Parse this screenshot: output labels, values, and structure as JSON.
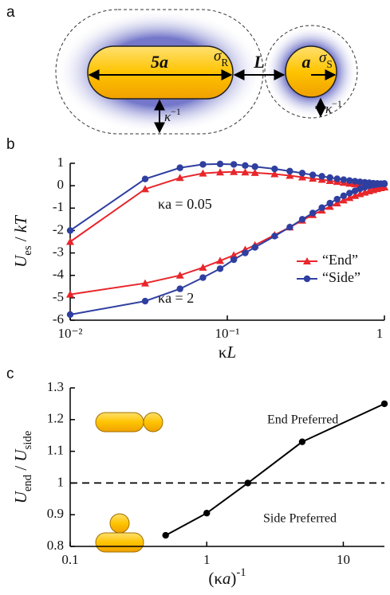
{
  "panel_labels": [
    "a",
    "b",
    "c"
  ],
  "diagram": {
    "rod_length": [
      {
        "t": "5a",
        "s": "bi"
      }
    ],
    "rod_charge": [
      {
        "t": "σ",
        "s": "it"
      },
      {
        "t": "R",
        "s": "sub"
      }
    ],
    "gap": [
      {
        "t": "L",
        "s": "bi"
      }
    ],
    "radius": [
      {
        "t": "a",
        "s": "bi"
      }
    ],
    "sphere_charge": [
      {
        "t": "σ",
        "s": "it"
      },
      {
        "t": "S",
        "s": "sub"
      }
    ],
    "debye_rod": [
      {
        "t": "κ",
        "s": "it"
      },
      {
        "t": "−1",
        "s": "sup"
      }
    ],
    "debye_sphere": [
      {
        "t": "κ",
        "s": "it"
      },
      {
        "t": "−1",
        "s": "sup"
      }
    ]
  },
  "chart_data": [
    {
      "type": "line",
      "log_x": true,
      "x": [
        0.01,
        0.03,
        0.05,
        0.07,
        0.09,
        0.11,
        0.13,
        0.15,
        0.2,
        0.25,
        0.3,
        0.35,
        0.4,
        0.45,
        0.5,
        0.55,
        0.6,
        0.65,
        0.7,
        0.75,
        0.8,
        0.85,
        0.9,
        0.95,
        1
      ],
      "xlim": [
        0.01,
        1
      ],
      "ylim": [
        -6,
        1
      ],
      "xticks": [
        {
          "value": 0.01,
          "label": "10⁻²"
        },
        {
          "value": 0.1,
          "label": "10⁻¹"
        },
        1
      ],
      "yticks": [
        -6,
        -5,
        -4,
        -3,
        -2,
        -1,
        0,
        1
      ],
      "xlabel": [
        {
          "t": "κ",
          "s": ""
        },
        {
          "t": "L",
          "s": "it"
        }
      ],
      "ylabel": [
        {
          "t": "U",
          "s": "it"
        },
        {
          "t": "es",
          "s": "sub"
        },
        {
          "t": " / ",
          "s": ""
        },
        {
          "t": "kT",
          "s": "it"
        }
      ],
      "annotations": [
        "κa = 0.05",
        "κa = 2"
      ],
      "legend": "center right",
      "series": [
        {
          "name": "“End”",
          "color": "#e8262b",
          "marker": "triangle",
          "curves": [
            [
              -2.5,
              -0.15,
              0.35,
              0.55,
              0.6,
              0.62,
              0.6,
              0.58,
              0.52,
              0.45,
              0.38,
              0.32,
              0.27,
              0.22,
              0.18,
              0.14,
              0.1,
              0.07,
              0.04,
              0.02,
              0,
              -0.02,
              -0.04,
              -0.05,
              -0.06
            ],
            [
              -4.85,
              -4.35,
              -4.0,
              -3.65,
              -3.35,
              -3.1,
              -2.85,
              -2.65,
              -2.2,
              -1.85,
              -1.55,
              -1.3,
              -1.1,
              -0.93,
              -0.78,
              -0.65,
              -0.54,
              -0.45,
              -0.37,
              -0.3,
              -0.24,
              -0.19,
              -0.14,
              -0.1,
              -0.07
            ]
          ]
        },
        {
          "name": "“Side”",
          "color": "#2f3fa0",
          "marker": "circle",
          "curves": [
            [
              -2,
              0.3,
              0.8,
              0.95,
              0.97,
              0.95,
              0.9,
              0.85,
              0.75,
              0.65,
              0.56,
              0.48,
              0.42,
              0.36,
              0.31,
              0.27,
              0.23,
              0.2,
              0.17,
              0.15,
              0.13,
              0.11,
              0.1,
              0.09,
              0.08
            ],
            [
              -5.75,
              -5.15,
              -4.6,
              -4.1,
              -3.7,
              -3.3,
              -3.0,
              -2.75,
              -2.25,
              -1.85,
              -1.5,
              -1.22,
              -0.98,
              -0.78,
              -0.6,
              -0.45,
              -0.33,
              -0.23,
              -0.14,
              -0.07,
              -0.01,
              0.03,
              0.06,
              0.08,
              0.1
            ]
          ]
        }
      ]
    },
    {
      "type": "line",
      "log_x": true,
      "x": [
        0.5,
        1,
        2,
        5,
        20
      ],
      "xlim": [
        0.1,
        20
      ],
      "ylim": [
        0.8,
        1.3
      ],
      "xticks": [
        0.1,
        1,
        10
      ],
      "yticks": [
        0.8,
        0.9,
        1,
        1.1,
        1.2,
        1.3
      ],
      "xlabel": [
        {
          "t": "(κ",
          "s": ""
        },
        {
          "t": "a",
          "s": "it"
        },
        {
          "t": ")",
          "s": ""
        },
        {
          "t": "-1",
          "s": "sup"
        }
      ],
      "ylabel": [
        {
          "t": "U",
          "s": "it"
        },
        {
          "t": "end",
          "s": "sub"
        },
        {
          "t": " / ",
          "s": ""
        },
        {
          "t": "U",
          "s": "it"
        },
        {
          "t": "side",
          "s": "sub"
        }
      ],
      "annotations": [
        "End Preferred",
        "Side Preferred"
      ],
      "hline": 1,
      "series": [
        {
          "color": "#000000",
          "marker": "circle",
          "curves": [
            [
              0.835,
              0.905,
              1.0,
              1.13,
              1.25
            ]
          ]
        }
      ]
    }
  ]
}
